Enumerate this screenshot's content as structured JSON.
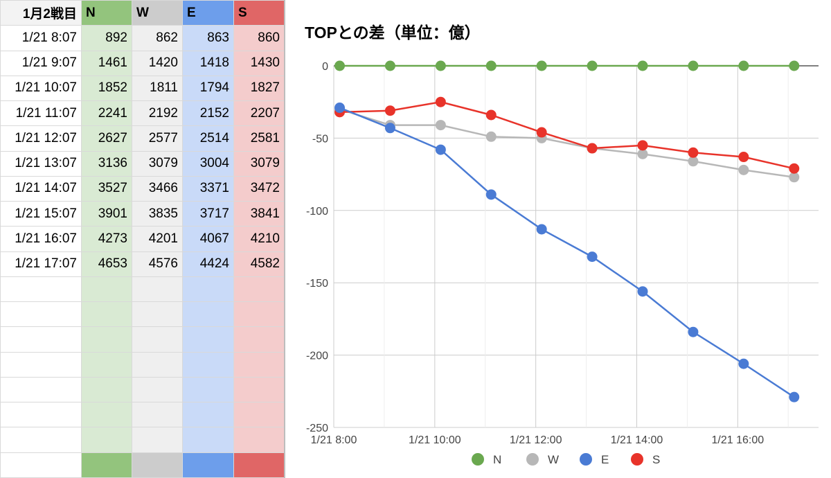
{
  "sheet": {
    "corner_label": "1月2戦目",
    "columns": [
      "N",
      "W",
      "E",
      "S"
    ],
    "rows": [
      {
        "time": "1/21 8:07",
        "values": [
          "892",
          "862",
          "863",
          "860"
        ]
      },
      {
        "time": "1/21 9:07",
        "values": [
          "1461",
          "1420",
          "1418",
          "1430"
        ]
      },
      {
        "time": "1/21 10:07",
        "values": [
          "1852",
          "1811",
          "1794",
          "1827"
        ]
      },
      {
        "time": "1/21 11:07",
        "values": [
          "2241",
          "2192",
          "2152",
          "2207"
        ]
      },
      {
        "time": "1/21 12:07",
        "values": [
          "2627",
          "2577",
          "2514",
          "2581"
        ]
      },
      {
        "time": "1/21 13:07",
        "values": [
          "3136",
          "3079",
          "3004",
          "3079"
        ]
      },
      {
        "time": "1/21 14:07",
        "values": [
          "3527",
          "3466",
          "3371",
          "3472"
        ]
      },
      {
        "time": "1/21 15:07",
        "values": [
          "3901",
          "3835",
          "3717",
          "3841"
        ]
      },
      {
        "time": "1/21 16:07",
        "values": [
          "4273",
          "4201",
          "4067",
          "4210"
        ]
      },
      {
        "time": "1/21 17:07",
        "values": [
          "4653",
          "4576",
          "4424",
          "4582"
        ]
      }
    ],
    "empty_rows": 8,
    "colors": {
      "N_header": "#93c47d",
      "N_cell": "#d9ead3",
      "W_header": "#cccccc",
      "W_cell": "#efefef",
      "E_header": "#6d9eeb",
      "E_cell": "#c9daf8",
      "S_header": "#e06666",
      "S_cell": "#f4cccc"
    }
  },
  "chart_data": {
    "type": "line",
    "title": "TOPとの差（単位：億）",
    "x": [
      "1/21 8:07",
      "1/21 9:07",
      "1/21 10:07",
      "1/21 11:07",
      "1/21 12:07",
      "1/21 13:07",
      "1/21 14:07",
      "1/21 15:07",
      "1/21 16:07",
      "1/21 17:07"
    ],
    "x_hours": [
      8.1167,
      9.1167,
      10.1167,
      11.1167,
      12.1167,
      13.1167,
      14.1167,
      15.1167,
      16.1167,
      17.1167
    ],
    "xlim_hours": [
      8,
      17.6
    ],
    "x_ticks": [
      {
        "hour": 8,
        "label": "1/21 8:00"
      },
      {
        "hour": 10,
        "label": "1/21 10:00"
      },
      {
        "hour": 12,
        "label": "1/21 12:00"
      },
      {
        "hour": 14,
        "label": "1/21 14:00"
      },
      {
        "hour": 16,
        "label": "1/21 16:00"
      }
    ],
    "x_grid_hours": [
      8,
      9,
      10,
      11,
      12,
      13,
      14,
      15,
      16,
      17
    ],
    "ylim": [
      -250,
      0
    ],
    "y_ticks": [
      0,
      -50,
      -100,
      -150,
      -200,
      -250
    ],
    "xlabel": "",
    "ylabel": "",
    "grid": true,
    "legend_position": "bottom",
    "series": [
      {
        "name": "N",
        "color": "#6aa84f",
        "values": [
          0,
          0,
          0,
          0,
          0,
          0,
          0,
          0,
          0,
          0
        ]
      },
      {
        "name": "W",
        "color": "#b7b7b7",
        "values": [
          -30,
          -41,
          -41,
          -49,
          -50,
          -57,
          -61,
          -66,
          -72,
          -77
        ]
      },
      {
        "name": "E",
        "color": "#4a7bd4",
        "values": [
          -29,
          -43,
          -58,
          -89,
          -113,
          -132,
          -156,
          -184,
          -206,
          -229
        ]
      },
      {
        "name": "S",
        "color": "#e8332a",
        "values": [
          -32,
          -31,
          -25,
          -34,
          -46,
          -57,
          -55,
          -60,
          -63,
          -71
        ]
      }
    ]
  }
}
